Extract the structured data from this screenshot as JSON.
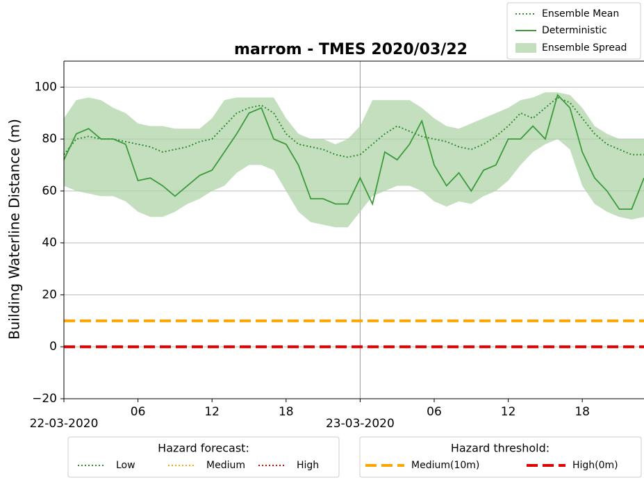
{
  "chart_data": {
    "type": "line",
    "title": "marrom - TMES 2020/03/22",
    "ylabel": "Building Waterline Distance (m)",
    "x": [
      0,
      1,
      2,
      3,
      4,
      5,
      6,
      7,
      8,
      9,
      10,
      11,
      12,
      13,
      14,
      15,
      16,
      17,
      18,
      19,
      20,
      21,
      22,
      23,
      24,
      25,
      26,
      27,
      28,
      29,
      30,
      31,
      32,
      33,
      34,
      35,
      36,
      37,
      38,
      39,
      40,
      41,
      42,
      43,
      44,
      45,
      46,
      47
    ],
    "xlim": [
      0,
      47
    ],
    "xticks": [
      {
        "value": 0,
        "label": "22-03-2020"
      },
      {
        "value": 6,
        "label": "06"
      },
      12,
      18,
      {
        "value": 24,
        "label": "23-03-2020"
      },
      {
        "value": 30,
        "label": "06"
      },
      {
        "value": 36,
        "label": "12"
      },
      {
        "value": 42,
        "label": "18"
      }
    ],
    "ylim": [
      -20,
      110
    ],
    "yticks": [
      {
        "value": -20,
        "label": "−20"
      },
      0,
      20,
      40,
      60,
      80,
      100
    ],
    "grid": true,
    "vlines": [
      24
    ],
    "series": [
      {
        "name": "Ensemble Mean",
        "color": "#2e8b2e",
        "style": "dotted",
        "values": [
          74,
          80,
          81,
          80,
          80,
          79,
          78,
          77,
          75,
          76,
          77,
          79,
          80,
          85,
          90,
          92,
          93,
          90,
          82,
          78,
          77,
          76,
          74,
          73,
          74,
          78,
          82,
          85,
          83,
          81,
          80,
          79,
          77,
          76,
          78,
          81,
          85,
          90,
          88,
          92,
          96,
          94,
          88,
          82,
          78,
          76,
          74,
          74
        ]
      },
      {
        "name": "Deterministic",
        "color": "#3a9a3a",
        "style": "solid",
        "values": [
          72,
          82,
          84,
          80,
          80,
          78,
          64,
          65,
          62,
          58,
          62,
          66,
          68,
          75,
          82,
          90,
          92,
          80,
          78,
          70,
          57,
          57,
          55,
          55,
          65,
          55,
          75,
          72,
          78,
          87,
          70,
          62,
          67,
          60,
          68,
          70,
          80,
          80,
          85,
          80,
          97,
          92,
          75,
          65,
          60,
          53,
          53,
          65
        ]
      }
    ],
    "spread": {
      "name": "Ensemble Spread",
      "color": "#a9d1a3",
      "lower": [
        62,
        60,
        59,
        58,
        58,
        56,
        52,
        50,
        50,
        52,
        55,
        57,
        60,
        62,
        67,
        70,
        70,
        68,
        60,
        52,
        48,
        47,
        46,
        46,
        52,
        58,
        60,
        62,
        62,
        60,
        56,
        54,
        56,
        55,
        58,
        60,
        64,
        70,
        75,
        78,
        80,
        76,
        62,
        55,
        52,
        50,
        49,
        50
      ],
      "upper": [
        88,
        95,
        96,
        95,
        92,
        90,
        86,
        85,
        85,
        84,
        84,
        84,
        88,
        95,
        96,
        96,
        96,
        96,
        88,
        82,
        80,
        80,
        78,
        80,
        85,
        95,
        95,
        95,
        95,
        92,
        88,
        85,
        84,
        86,
        88,
        90,
        92,
        95,
        96,
        98,
        98,
        97,
        92,
        85,
        82,
        80,
        80,
        80
      ]
    },
    "thresholds": [
      {
        "name": "Medium(10m)",
        "value": 10,
        "color": "#ffa500"
      },
      {
        "name": "High(0m)",
        "value": 0,
        "color": "#e00000"
      }
    ],
    "forecast_legend": {
      "title": "Hazard forecast:",
      "items": [
        {
          "name": "Low",
          "color": "#2e8b2e"
        },
        {
          "name": "Medium",
          "color": "#ffa500"
        },
        {
          "name": "High",
          "color": "#e00000"
        }
      ]
    },
    "threshold_legend_title": "Hazard threshold:"
  }
}
